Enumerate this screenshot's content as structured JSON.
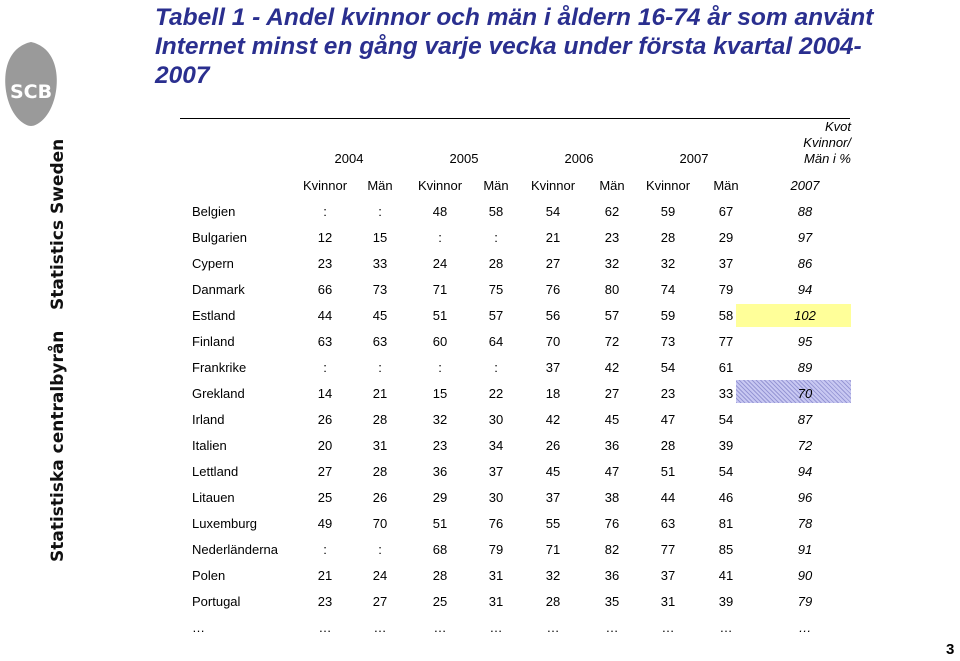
{
  "title": "Tabell 1 - Andel kvinnor och män i åldern 16-74 år som använt Internet minst en gång varje vecka under första kvartal 2004-2007",
  "logo_text": "SCB",
  "sidebar": {
    "name_en": "Statistics Sweden",
    "name_sv": "Statistiska centralbyrån"
  },
  "table": {
    "kvot_header": [
      "Kvot",
      "Kvinnor/",
      "Män i %"
    ],
    "years": [
      "2004",
      "2005",
      "2006",
      "2007"
    ],
    "sub_headers": [
      "Kvinnor",
      "Män",
      "Kvinnor",
      "Män",
      "Kvinnor",
      "Män",
      "Kvinnor",
      "Män",
      "2007"
    ],
    "rows": [
      {
        "country": "Belgien",
        "values": [
          ":",
          ":",
          "48",
          "58",
          "54",
          "62",
          "59",
          "67"
        ],
        "kvot": "88"
      },
      {
        "country": "Bulgarien",
        "values": [
          "12",
          "15",
          ":",
          ":",
          "21",
          "23",
          "28",
          "29"
        ],
        "kvot": "97"
      },
      {
        "country": "Cypern",
        "values": [
          "23",
          "33",
          "24",
          "28",
          "27",
          "32",
          "32",
          "37"
        ],
        "kvot": "86"
      },
      {
        "country": "Danmark",
        "values": [
          "66",
          "73",
          "71",
          "75",
          "76",
          "80",
          "74",
          "79"
        ],
        "kvot": "94"
      },
      {
        "country": "Estland",
        "values": [
          "44",
          "45",
          "51",
          "57",
          "56",
          "57",
          "59",
          "58"
        ],
        "kvot": "102"
      },
      {
        "country": "Finland",
        "values": [
          "63",
          "63",
          "60",
          "64",
          "70",
          "72",
          "73",
          "77"
        ],
        "kvot": "95"
      },
      {
        "country": "Frankrike",
        "values": [
          ":",
          ":",
          ":",
          ":",
          "37",
          "42",
          "54",
          "61"
        ],
        "kvot": "89"
      },
      {
        "country": "Grekland",
        "values": [
          "14",
          "21",
          "15",
          "22",
          "18",
          "27",
          "23",
          "33"
        ],
        "kvot": "70"
      },
      {
        "country": "Irland",
        "values": [
          "26",
          "28",
          "32",
          "30",
          "42",
          "45",
          "47",
          "54"
        ],
        "kvot": "87"
      },
      {
        "country": "Italien",
        "values": [
          "20",
          "31",
          "23",
          "34",
          "26",
          "36",
          "28",
          "39"
        ],
        "kvot": "72"
      },
      {
        "country": "Lettland",
        "values": [
          "27",
          "28",
          "36",
          "37",
          "45",
          "47",
          "51",
          "54"
        ],
        "kvot": "94"
      },
      {
        "country": "Litauen",
        "values": [
          "25",
          "26",
          "29",
          "30",
          "37",
          "38",
          "44",
          "46"
        ],
        "kvot": "96"
      },
      {
        "country": "Luxemburg",
        "values": [
          "49",
          "70",
          "51",
          "76",
          "55",
          "76",
          "63",
          "81"
        ],
        "kvot": "78"
      },
      {
        "country": "Nederländerna",
        "values": [
          ":",
          ":",
          "68",
          "79",
          "71",
          "82",
          "77",
          "85"
        ],
        "kvot": "91"
      },
      {
        "country": "Polen",
        "values": [
          "21",
          "24",
          "28",
          "31",
          "32",
          "36",
          "37",
          "41"
        ],
        "kvot": "90"
      },
      {
        "country": "Portugal",
        "values": [
          "23",
          "27",
          "25",
          "31",
          "28",
          "35",
          "31",
          "39"
        ],
        "kvot": "79"
      },
      {
        "country": "…",
        "values": [
          "…",
          "…",
          "…",
          "…",
          "…",
          "…",
          "…",
          "…"
        ],
        "kvot": "…"
      }
    ]
  },
  "highlight_colors": {
    "estland": "#ffff99",
    "grekland": "#c8c8f2"
  },
  "page_number": "3"
}
